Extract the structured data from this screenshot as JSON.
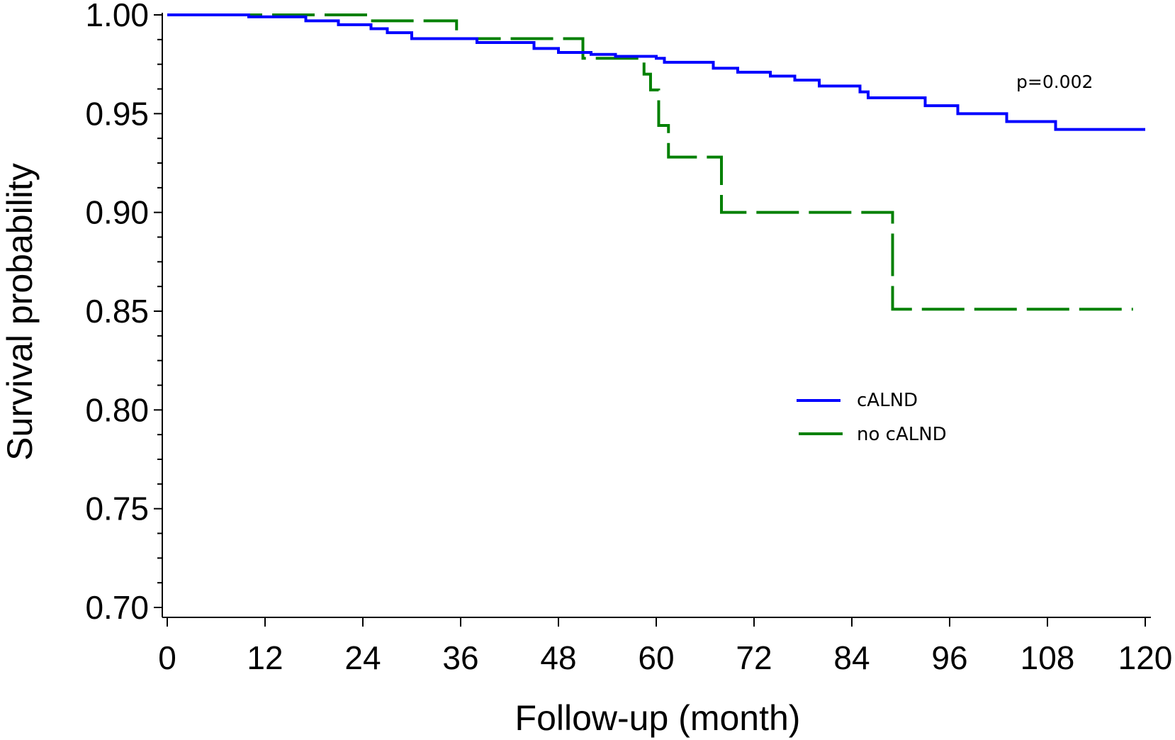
{
  "chart_data": {
    "type": "line",
    "step": true,
    "xlabel": "Follow-up (month)",
    "ylabel": "Survival probability",
    "xlim": [
      0,
      120
    ],
    "ylim": [
      0.7,
      1.0
    ],
    "x_ticks": [
      0,
      12,
      24,
      36,
      48,
      60,
      72,
      84,
      96,
      108,
      120
    ],
    "x_tick_labels": [
      "0",
      "12",
      "24",
      "36",
      "48",
      "60",
      "72",
      "84",
      "96",
      "108",
      "120"
    ],
    "y_ticks": [
      0.7,
      0.75,
      0.8,
      0.85,
      0.9,
      0.95,
      1.0
    ],
    "y_tick_labels": [
      "0.70",
      "0.75",
      "0.80",
      "0.85",
      "0.90",
      "0.95",
      "1.00"
    ],
    "y_minor_step": 0.0125,
    "grid": false,
    "legend_position": "center-right",
    "annotation": "p=0.002",
    "series": [
      {
        "name": "cALND",
        "color": "#0000ff",
        "dash": "solid",
        "x": [
          0,
          10,
          17,
          21,
          25,
          27,
          30,
          38,
          45,
          48,
          52,
          55,
          60,
          61,
          67,
          70,
          74,
          77,
          80,
          85,
          86,
          93,
          97,
          103,
          109,
          120
        ],
        "y": [
          1.0,
          0.999,
          0.997,
          0.995,
          0.993,
          0.991,
          0.988,
          0.986,
          0.983,
          0.981,
          0.98,
          0.979,
          0.978,
          0.976,
          0.973,
          0.971,
          0.969,
          0.967,
          0.964,
          0.961,
          0.958,
          0.954,
          0.95,
          0.946,
          0.942,
          0.942
        ]
      },
      {
        "name": "no cALND",
        "color": "#008000",
        "dash": "dashed",
        "x": [
          0,
          25,
          35.5,
          51,
          58.5,
          59.3,
          60.3,
          61.5,
          68,
          89,
          118.5
        ],
        "y": [
          1.0,
          0.997,
          0.988,
          0.978,
          0.97,
          0.962,
          0.944,
          0.928,
          0.9,
          0.851,
          0.851
        ]
      }
    ]
  }
}
